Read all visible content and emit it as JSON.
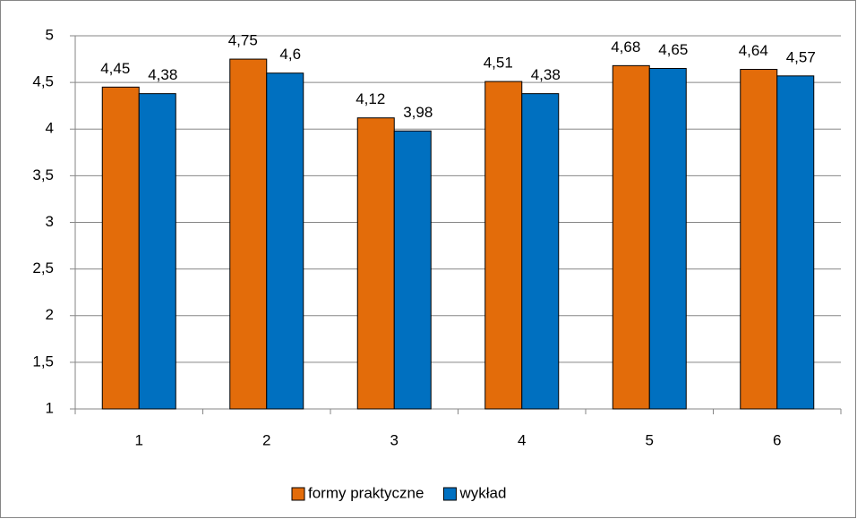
{
  "chart_data": {
    "type": "bar",
    "categories": [
      "1",
      "2",
      "3",
      "4",
      "5",
      "6"
    ],
    "series": [
      {
        "name": "formy praktyczne",
        "color": "#e36c0a",
        "values": [
          4.45,
          4.75,
          4.12,
          4.51,
          4.68,
          4.64
        ],
        "value_labels": [
          "4,45",
          "4,75",
          "4,12",
          "4,51",
          "4,68",
          "4,64"
        ]
      },
      {
        "name": "wykład",
        "color": "#0070c0",
        "values": [
          4.38,
          4.6,
          3.98,
          4.38,
          4.65,
          4.57
        ],
        "value_labels": [
          "4,38",
          "4,6",
          "3,98",
          "4,38",
          "4,65",
          "4,57"
        ]
      }
    ],
    "ylim": [
      1,
      5
    ],
    "yticks": [
      1,
      {
        "value": 1.5,
        "label": "1,5"
      },
      2,
      {
        "value": 2.5,
        "label": "2,5"
      },
      3,
      {
        "value": 3.5,
        "label": "3,5"
      },
      4,
      {
        "value": 4.5,
        "label": "4,5"
      },
      5
    ],
    "grid": true,
    "legend": "bottom"
  }
}
